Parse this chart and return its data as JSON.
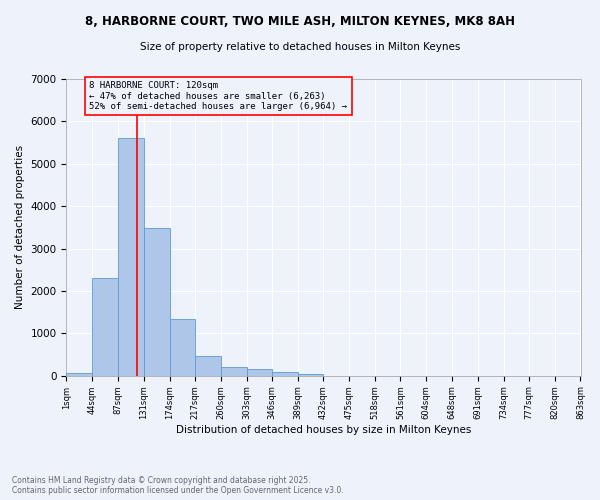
{
  "title": "8, HARBORNE COURT, TWO MILE ASH, MILTON KEYNES, MK8 8AH",
  "subtitle": "Size of property relative to detached houses in Milton Keynes",
  "xlabel": "Distribution of detached houses by size in Milton Keynes",
  "ylabel": "Number of detached properties",
  "bar_color": "#aec6e8",
  "bar_edge_color": "#5b9bd5",
  "background_color": "#eef2fb",
  "grid_color": "#ffffff",
  "vline_x": 120,
  "vline_color": "red",
  "annotation_text": "8 HARBORNE COURT: 120sqm\n← 47% of detached houses are smaller (6,263)\n52% of semi-detached houses are larger (6,964) →",
  "annotation_box_color": "red",
  "bin_edges": [
    1,
    44,
    87,
    131,
    174,
    217,
    260,
    303,
    346,
    389,
    432,
    475,
    518,
    561,
    604,
    648,
    691,
    734,
    777,
    820,
    863
  ],
  "bar_heights": [
    75,
    2300,
    5600,
    3480,
    1340,
    470,
    195,
    170,
    90,
    30,
    0,
    0,
    0,
    0,
    0,
    0,
    0,
    0,
    0,
    0
  ],
  "ylim": [
    0,
    7000
  ],
  "yticks": [
    0,
    1000,
    2000,
    3000,
    4000,
    5000,
    6000,
    7000
  ],
  "footer_line1": "Contains HM Land Registry data © Crown copyright and database right 2025.",
  "footer_line2": "Contains public sector information licensed under the Open Government Licence v3.0.",
  "tick_labels": [
    "1sqm",
    "44sqm",
    "87sqm",
    "131sqm",
    "174sqm",
    "217sqm",
    "260sqm",
    "303sqm",
    "346sqm",
    "389sqm",
    "432sqm",
    "475sqm",
    "518sqm",
    "561sqm",
    "604sqm",
    "648sqm",
    "691sqm",
    "734sqm",
    "777sqm",
    "820sqm",
    "863sqm"
  ]
}
